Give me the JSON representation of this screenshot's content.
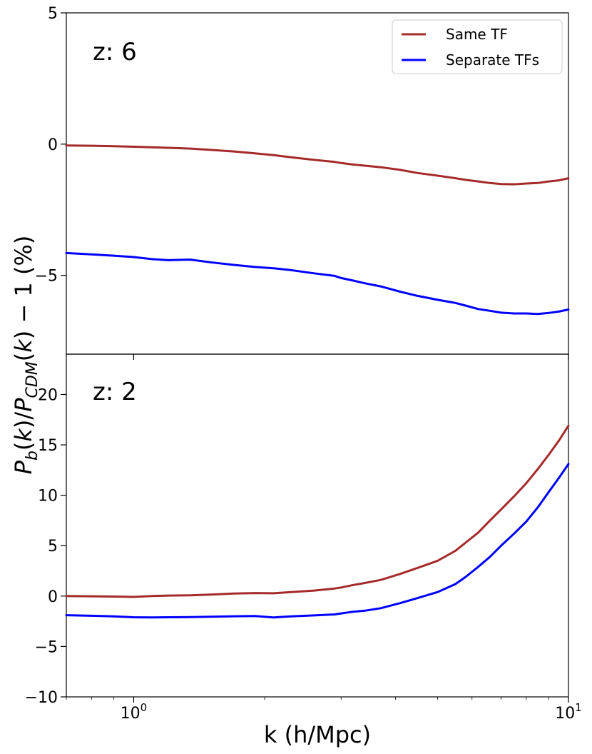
{
  "chart_data": [
    {
      "type": "line",
      "panel_label": "z: 6",
      "x_scale": "log",
      "xlim": [
        0.7,
        10
      ],
      "ylim": [
        -8,
        5
      ],
      "yticks": [
        -5,
        0,
        5
      ],
      "legend": {
        "placement": "top-right",
        "entries": [
          "Same TF",
          "Separate TFs"
        ]
      },
      "series": [
        {
          "name": "Same TF",
          "color": "#a52a2a",
          "x": [
            0.7,
            0.8,
            0.9,
            1.0,
            1.1,
            1.2,
            1.35,
            1.5,
            1.7,
            1.9,
            2.1,
            2.3,
            2.6,
            2.9,
            3.0,
            3.2,
            3.4,
            3.7,
            4.1,
            4.5,
            5.0,
            5.5,
            5.8,
            6.2,
            6.6,
            7.0,
            7.5,
            8.0,
            8.5,
            9.0,
            9.5,
            10.0
          ],
          "y": [
            -0.05,
            -0.06,
            -0.08,
            -0.1,
            -0.12,
            -0.14,
            -0.17,
            -0.22,
            -0.28,
            -0.35,
            -0.42,
            -0.5,
            -0.6,
            -0.68,
            -0.72,
            -0.78,
            -0.82,
            -0.88,
            -0.98,
            -1.1,
            -1.2,
            -1.3,
            -1.36,
            -1.42,
            -1.48,
            -1.52,
            -1.53,
            -1.5,
            -1.48,
            -1.42,
            -1.38,
            -1.3
          ]
        },
        {
          "name": "Separate TFs",
          "color": "#0000ff",
          "x": [
            0.7,
            0.8,
            0.9,
            1.0,
            1.1,
            1.2,
            1.35,
            1.5,
            1.7,
            1.9,
            2.1,
            2.3,
            2.6,
            2.9,
            3.0,
            3.2,
            3.4,
            3.7,
            4.1,
            4.5,
            5.0,
            5.5,
            5.8,
            6.2,
            6.6,
            7.0,
            7.5,
            8.0,
            8.5,
            9.0,
            9.5,
            10.0
          ],
          "y": [
            -4.15,
            -4.2,
            -4.25,
            -4.3,
            -4.38,
            -4.42,
            -4.4,
            -4.5,
            -4.6,
            -4.68,
            -4.73,
            -4.8,
            -4.92,
            -5.02,
            -5.1,
            -5.2,
            -5.3,
            -5.42,
            -5.62,
            -5.78,
            -5.93,
            -6.05,
            -6.15,
            -6.28,
            -6.35,
            -6.42,
            -6.45,
            -6.45,
            -6.47,
            -6.43,
            -6.38,
            -6.3
          ]
        }
      ]
    },
    {
      "type": "line",
      "panel_label": "z: 2",
      "x_scale": "log",
      "xlim": [
        0.7,
        10
      ],
      "ylim": [
        -10,
        24
      ],
      "yticks": [
        -10,
        -5,
        0,
        5,
        10,
        15,
        20
      ],
      "series": [
        {
          "name": "Same TF",
          "color": "#a52a2a",
          "x": [
            0.7,
            0.8,
            0.9,
            1.0,
            1.1,
            1.2,
            1.35,
            1.5,
            1.7,
            1.9,
            2.1,
            2.3,
            2.6,
            2.9,
            3.0,
            3.2,
            3.4,
            3.7,
            4.1,
            4.5,
            5.0,
            5.5,
            5.8,
            6.2,
            6.6,
            7.0,
            7.5,
            8.0,
            8.5,
            9.0,
            9.5,
            10.0
          ],
          "y": [
            0.0,
            -0.02,
            -0.05,
            -0.08,
            0.0,
            0.05,
            0.08,
            0.15,
            0.25,
            0.3,
            0.28,
            0.4,
            0.55,
            0.75,
            0.85,
            1.1,
            1.3,
            1.6,
            2.2,
            2.8,
            3.5,
            4.5,
            5.3,
            6.3,
            7.5,
            8.6,
            9.9,
            11.2,
            12.6,
            14.0,
            15.4,
            16.9
          ]
        },
        {
          "name": "Separate TFs",
          "color": "#0000ff",
          "x": [
            0.7,
            0.8,
            0.9,
            1.0,
            1.1,
            1.2,
            1.35,
            1.5,
            1.7,
            1.9,
            2.1,
            2.3,
            2.6,
            2.9,
            3.0,
            3.2,
            3.4,
            3.7,
            4.1,
            4.5,
            5.0,
            5.5,
            5.8,
            6.2,
            6.6,
            7.0,
            7.5,
            8.0,
            8.5,
            9.0,
            9.5,
            10.0
          ],
          "y": [
            -1.9,
            -1.95,
            -2.02,
            -2.1,
            -2.12,
            -2.1,
            -2.08,
            -2.05,
            -2.0,
            -1.98,
            -2.12,
            -2.02,
            -1.92,
            -1.82,
            -1.72,
            -1.55,
            -1.45,
            -1.2,
            -0.7,
            -0.2,
            0.4,
            1.2,
            1.9,
            2.9,
            3.9,
            5.0,
            6.2,
            7.4,
            8.8,
            10.3,
            11.7,
            13.1
          ]
        }
      ]
    }
  ],
  "shared": {
    "xlabel": "k (h/Mpc)",
    "ylabel_parts": {
      "p1": "P",
      "sub1": "b",
      "mid1": "(",
      "k1": "k",
      "mid2": ")/",
      "p2": "P",
      "sub2": "CDM",
      "mid3": "(",
      "k2": "k",
      "tail": ") − 1 (%)"
    },
    "x_major_ticks": [
      {
        "value": 1,
        "base": "10",
        "exp": "0"
      },
      {
        "value": 10,
        "base": "10",
        "exp": "1"
      }
    ]
  }
}
